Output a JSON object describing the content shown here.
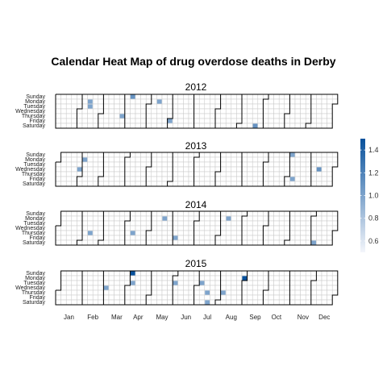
{
  "chart_data": {
    "type": "heatmap",
    "title": "Calendar Heat Map of drug overdose deaths in Derby",
    "day_labels": [
      "Sunday",
      "Monday",
      "Tuesday",
      "Wednesday",
      "Thursday",
      "Friday",
      "Saturday"
    ],
    "month_labels": [
      "Jan",
      "Feb",
      "Mar",
      "Apr",
      "May",
      "Jun",
      "Jul",
      "Aug",
      "Sep",
      "Oct",
      "Nov",
      "Dec"
    ],
    "legend": {
      "ticks": [
        0.6,
        0.8,
        1.0,
        1.2,
        1.4
      ],
      "tick_labels": [
        "0.6",
        "0.8",
        "1.0",
        "1.2",
        "1.4"
      ],
      "range": [
        0.5,
        1.5
      ],
      "low_color": "#f4f6fb",
      "high_color": "#08519c"
    },
    "years": [
      {
        "year": "2012",
        "points": [
          {
            "date": "2012-02-13",
            "value": 1.0
          },
          {
            "date": "2012-02-14",
            "value": 1.0
          },
          {
            "date": "2012-03-29",
            "value": 1.0
          },
          {
            "date": "2012-04-08",
            "value": 1.1
          },
          {
            "date": "2012-05-14",
            "value": 1.0
          },
          {
            "date": "2012-06-01",
            "value": 1.0
          },
          {
            "date": "2012-09-22",
            "value": 1.1
          }
        ]
      },
      {
        "year": "2013",
        "points": [
          {
            "date": "2013-02-04",
            "value": 1.0
          },
          {
            "date": "2013-01-30",
            "value": 1.0
          },
          {
            "date": "2013-11-03",
            "value": 1.0
          },
          {
            "date": "2013-11-08",
            "value": 1.0
          },
          {
            "date": "2013-12-11",
            "value": 1.1
          }
        ]
      },
      {
        "year": "2014",
        "points": [
          {
            "date": "2014-02-13",
            "value": 1.0
          },
          {
            "date": "2014-04-10",
            "value": 1.0
          },
          {
            "date": "2014-05-19",
            "value": 1.0
          },
          {
            "date": "2014-06-06",
            "value": 1.0
          },
          {
            "date": "2014-08-11",
            "value": 1.0
          },
          {
            "date": "2014-12-06",
            "value": 1.0
          }
        ]
      },
      {
        "year": "2015",
        "points": [
          {
            "date": "2015-03-04",
            "value": 1.0
          },
          {
            "date": "2015-04-05",
            "value": 1.5
          },
          {
            "date": "2015-04-07",
            "value": 1.0
          },
          {
            "date": "2015-06-02",
            "value": 1.0
          },
          {
            "date": "2015-07-07",
            "value": 1.0
          },
          {
            "date": "2015-07-16",
            "value": 1.0
          },
          {
            "date": "2015-07-18",
            "value": 1.0
          },
          {
            "date": "2015-08-06",
            "value": 1.0
          },
          {
            "date": "2015-08-31",
            "value": 1.5
          }
        ]
      }
    ]
  }
}
